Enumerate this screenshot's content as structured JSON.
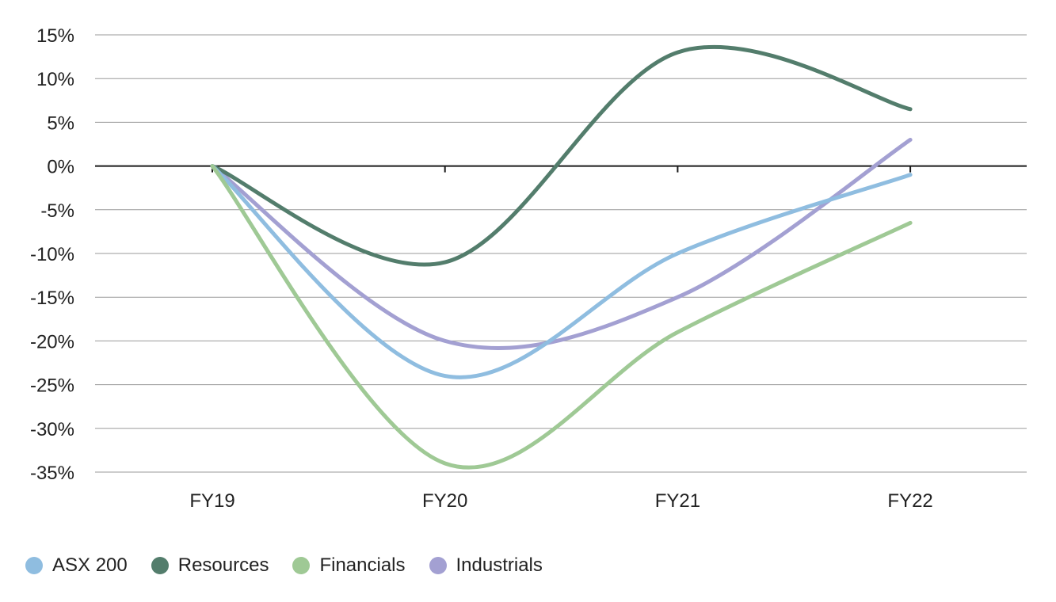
{
  "chart_data": {
    "type": "line",
    "title": "",
    "xlabel": "",
    "ylabel": "",
    "categories": [
      "FY19",
      "FY20",
      "FY21",
      "FY22"
    ],
    "ylim": [
      -35,
      15
    ],
    "yticks": [
      15,
      10,
      5,
      0,
      -5,
      -10,
      -15,
      -20,
      -25,
      -30,
      -35
    ],
    "ytick_labels": [
      "15%",
      "10%",
      "5%",
      "0%",
      "-5%",
      "-10%",
      "-15%",
      "-20%",
      "-25%",
      "-30%",
      "-35%"
    ],
    "grid": true,
    "legend_position": "bottom-left",
    "series": [
      {
        "name": "ASX 200",
        "color": "#8fbde0",
        "values": [
          0,
          -24,
          -10,
          -1
        ]
      },
      {
        "name": "Resources",
        "color": "#537d6c",
        "values": [
          0,
          -11,
          13,
          6.5
        ]
      },
      {
        "name": "Financials",
        "color": "#9fc995",
        "values": [
          0,
          -34,
          -19,
          -6.5
        ]
      },
      {
        "name": "Industrials",
        "color": "#a3a0d2",
        "values": [
          0,
          -20,
          -15,
          3
        ]
      }
    ]
  }
}
